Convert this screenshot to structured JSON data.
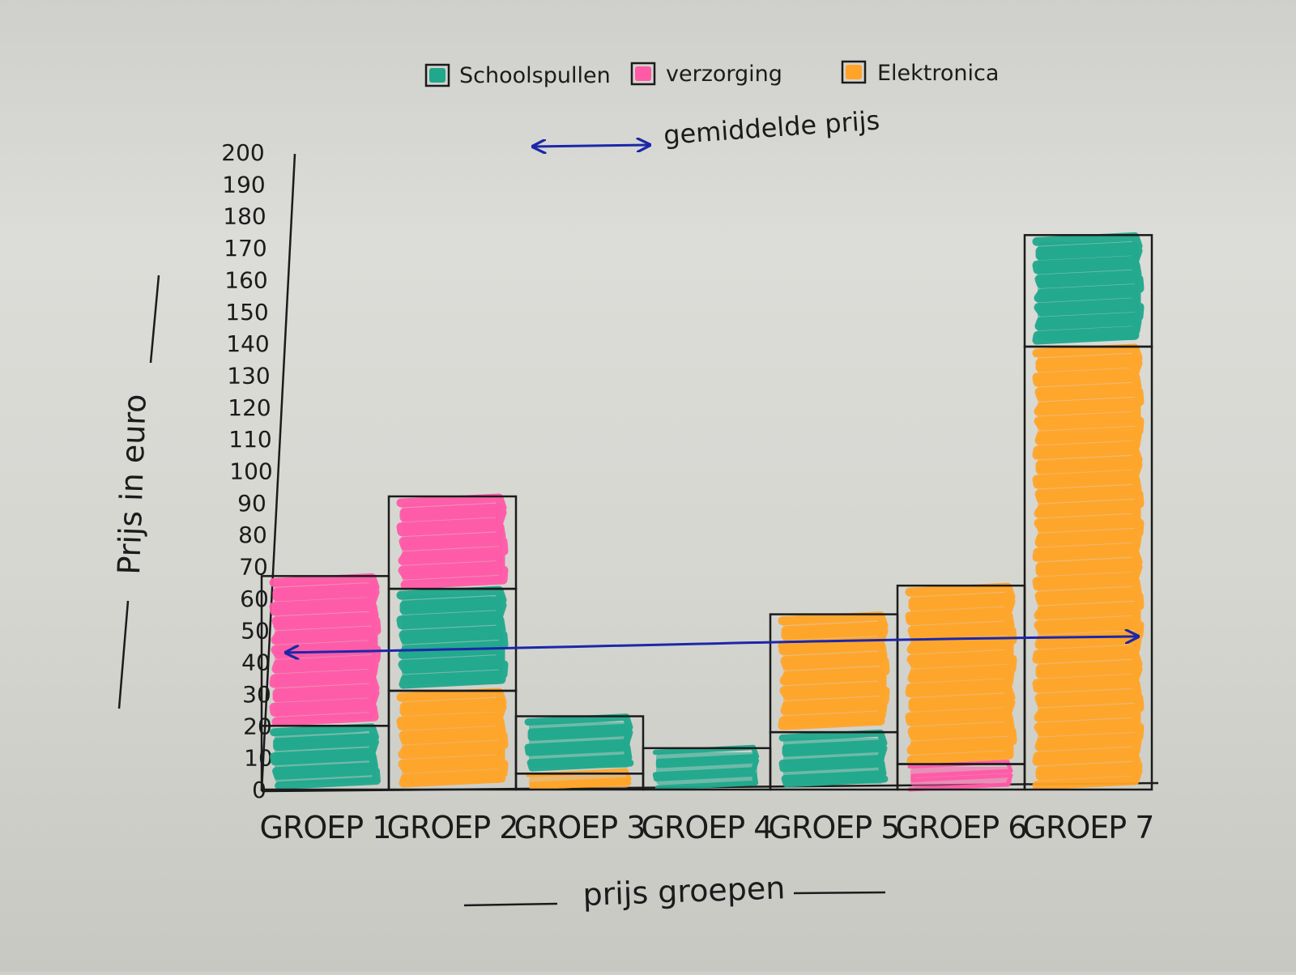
{
  "chart_data": {
    "type": "bar",
    "stacked": true,
    "title": "",
    "xlabel": "prijs groepen",
    "ylabel": "Prijs in euro",
    "ylim": [
      0,
      200
    ],
    "yticks": [
      0,
      10,
      20,
      30,
      40,
      50,
      60,
      70,
      80,
      90,
      100,
      110,
      120,
      130,
      140,
      150,
      160,
      170,
      180,
      190,
      200
    ],
    "categories": [
      "GROEP 1",
      "GROEP 2",
      "GROEP 3",
      "GROEP 4",
      "GROEP 5",
      "GROEP 6",
      "GROEP 7"
    ],
    "segments": [
      [
        {
          "series": "Schoolspullen",
          "value": 20
        },
        {
          "series": "verzorging",
          "value": 47
        }
      ],
      [
        {
          "series": "Elektronica",
          "value": 31
        },
        {
          "series": "Schoolspullen",
          "value": 32
        },
        {
          "series": "verzorging",
          "value": 29
        }
      ],
      [
        {
          "series": "Elektronica",
          "value": 5
        },
        {
          "series": "Schoolspullen",
          "value": 18
        }
      ],
      [
        {
          "series": "Schoolspullen",
          "value": 13
        }
      ],
      [
        {
          "series": "Schoolspullen",
          "value": 18
        },
        {
          "series": "Elektronica",
          "value": 37
        }
      ],
      [
        {
          "series": "verzorging",
          "value": 8
        },
        {
          "series": "Elektronica",
          "value": 56
        }
      ],
      [
        {
          "series": "Elektronica",
          "value": 139
        },
        {
          "series": "Schoolspullen",
          "value": 35
        }
      ]
    ],
    "average_line": {
      "label": "gemiddelde prijs",
      "value": 45
    },
    "legend": [
      {
        "name": "Schoolspullen",
        "color": "#1fa88c"
      },
      {
        "name": "verzorging",
        "color": "#ff5aa6"
      },
      {
        "name": "Elektronica",
        "color": "#ffa428"
      }
    ],
    "average_color": "#1c27a8",
    "legend_position": "top-center",
    "grid": false
  }
}
